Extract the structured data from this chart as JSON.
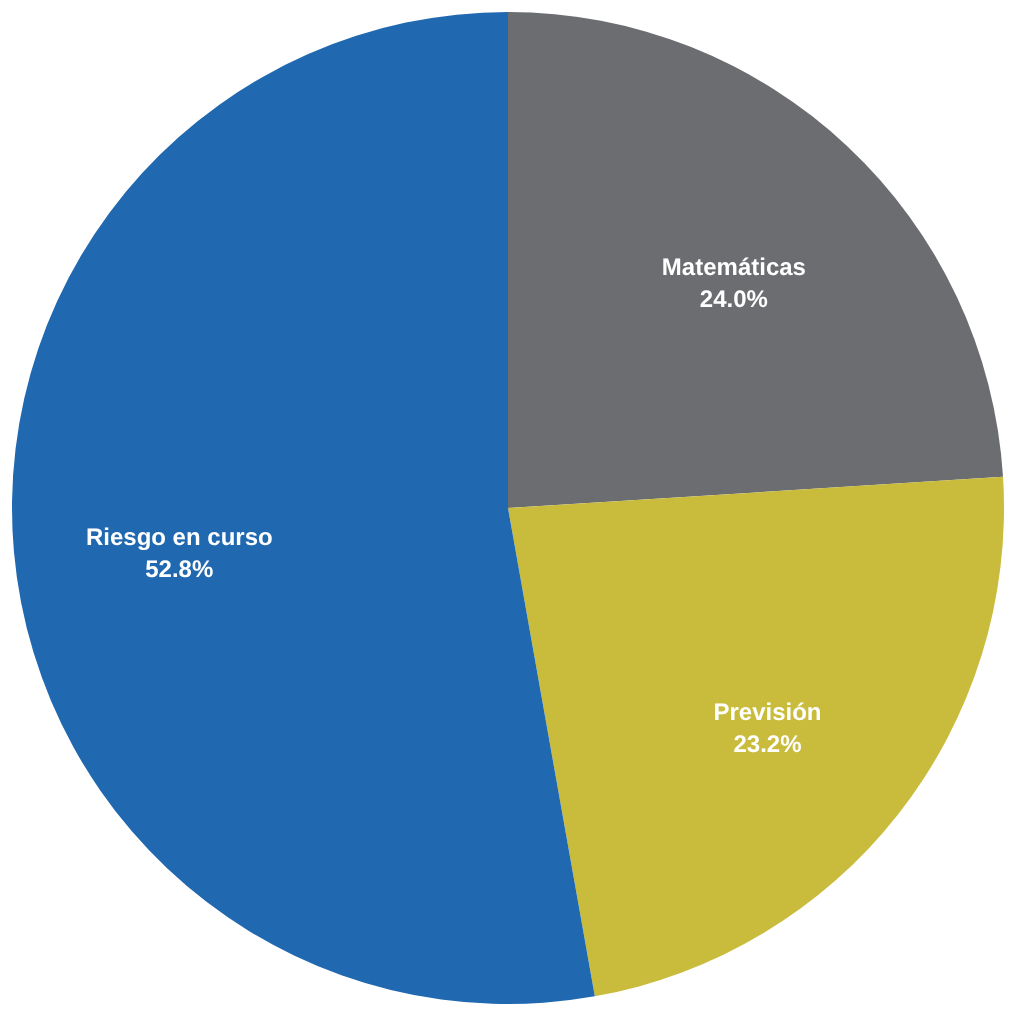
{
  "chart_data": {
    "type": "pie",
    "categories": [
      "Matemáticas",
      "Previsión",
      "Riesgo en curso"
    ],
    "values": [
      24.0,
      23.2,
      52.8
    ],
    "colors": [
      "#6b6d70",
      "#c9bc3c",
      "#2068b0"
    ],
    "value_labels": [
      "24.0%",
      "23.2%",
      "52.8%"
    ]
  }
}
